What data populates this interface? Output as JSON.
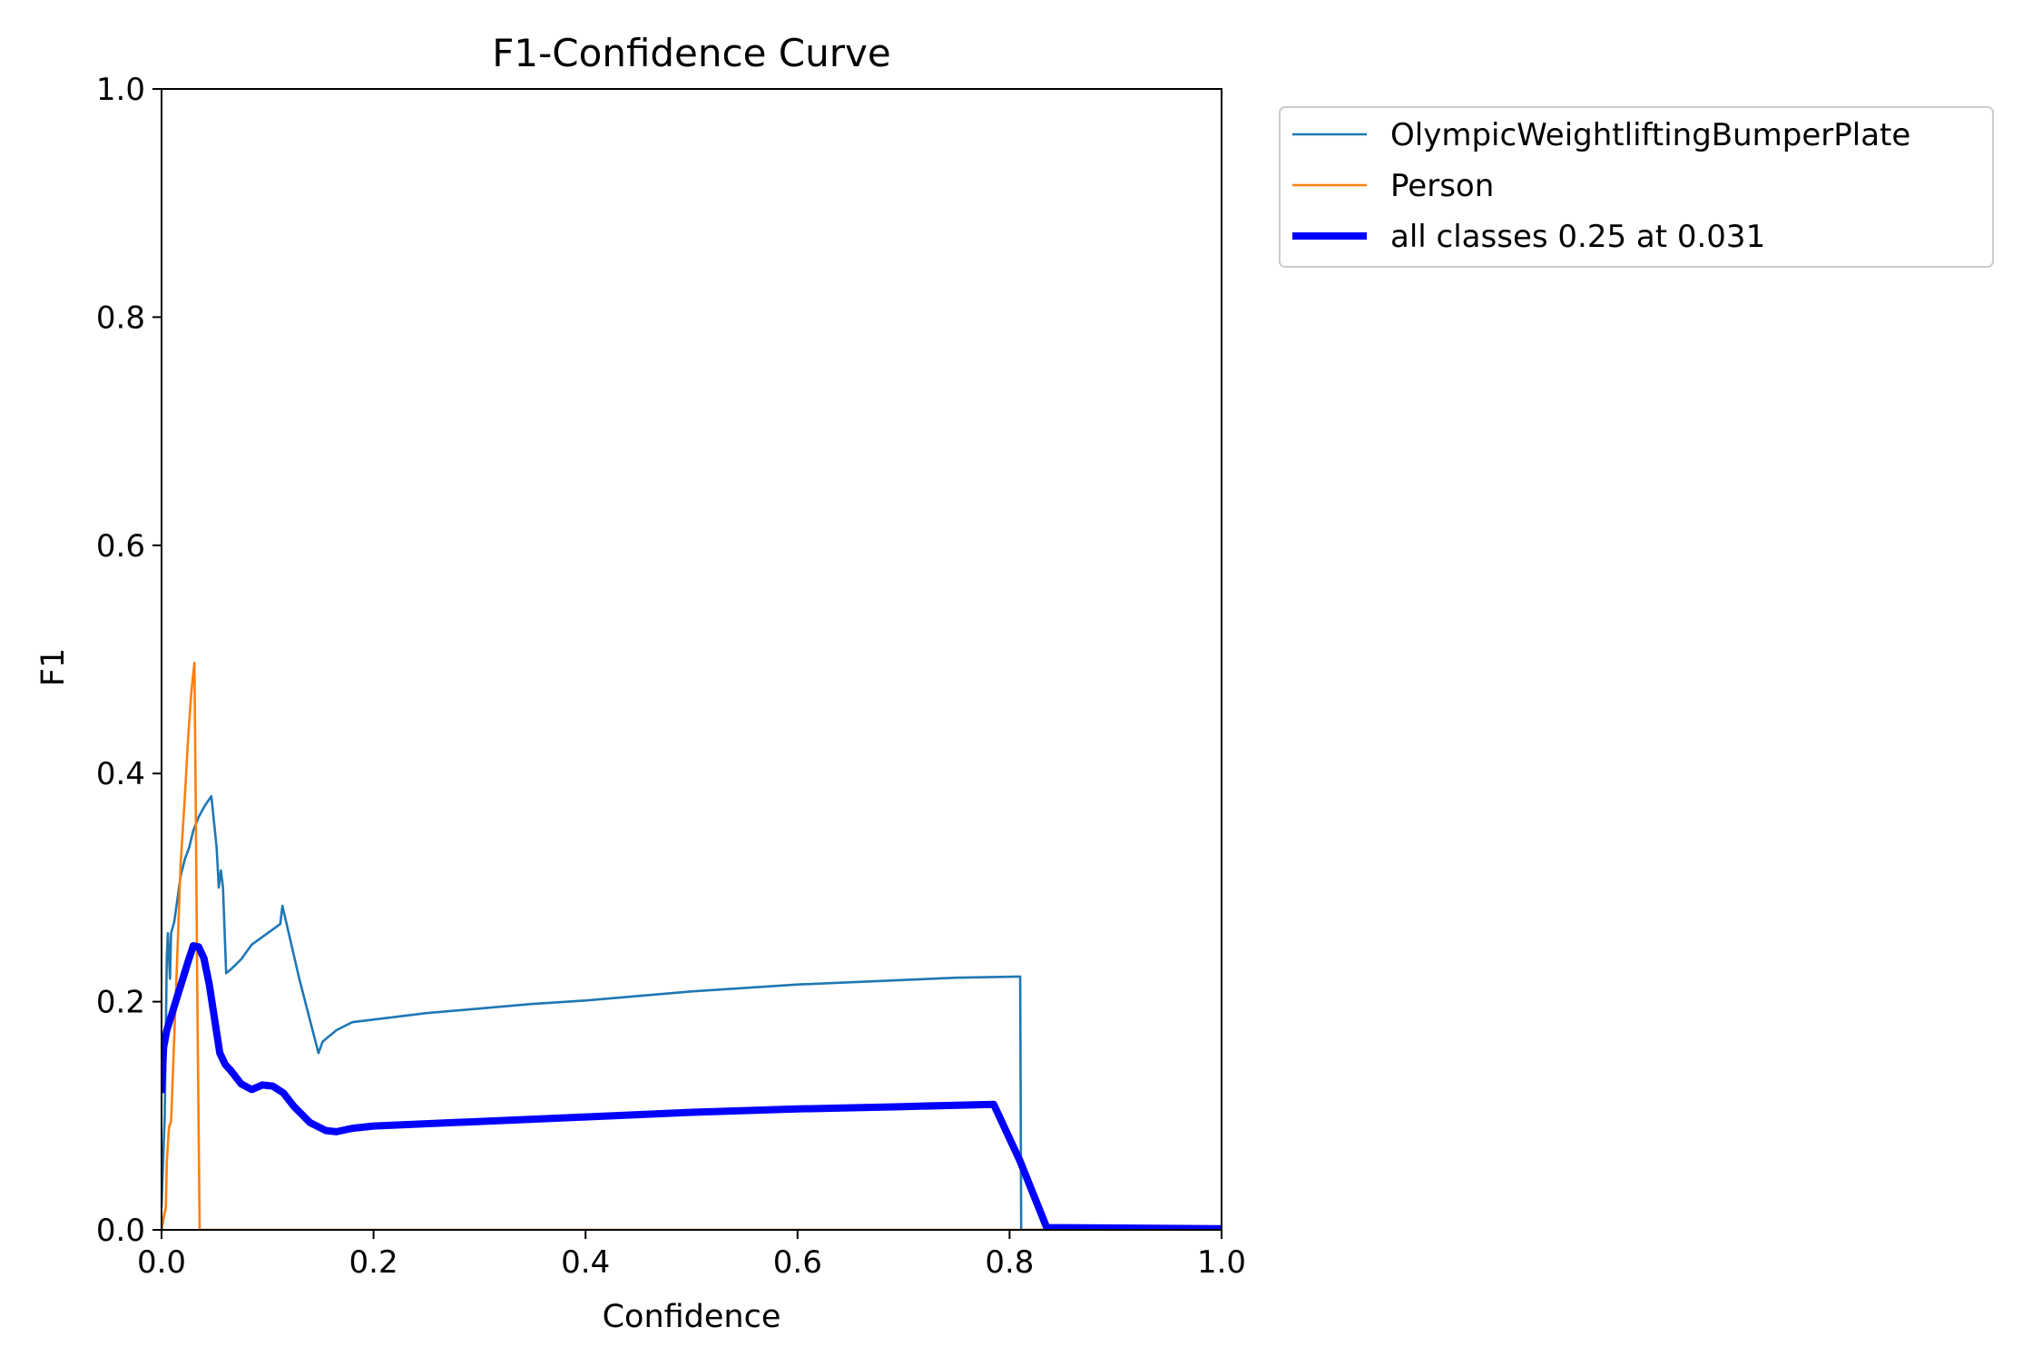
{
  "chart_data": {
    "type": "line",
    "title": "F1-Confidence Curve",
    "xlabel": "Confidence",
    "ylabel": "F1",
    "xlim": [
      0.0,
      1.0
    ],
    "ylim": [
      0.0,
      1.0
    ],
    "xticks": [
      "0.0",
      "0.2",
      "0.4",
      "0.6",
      "0.8",
      "1.0"
    ],
    "yticks": [
      "0.0",
      "0.2",
      "0.4",
      "0.6",
      "0.8",
      "1.0"
    ],
    "grid": false,
    "legend_position": "outside-top-right",
    "series": [
      {
        "name": "OlympicWeightliftingBumperPlate",
        "color": "#1f77b4",
        "points": [
          [
            0.0,
            0.02
          ],
          [
            0.003,
            0.1
          ],
          [
            0.005,
            0.24
          ],
          [
            0.006,
            0.26
          ],
          [
            0.008,
            0.22
          ],
          [
            0.009,
            0.26
          ],
          [
            0.012,
            0.27
          ],
          [
            0.015,
            0.29
          ],
          [
            0.018,
            0.31
          ],
          [
            0.022,
            0.325
          ],
          [
            0.026,
            0.335
          ],
          [
            0.03,
            0.35
          ],
          [
            0.035,
            0.362
          ],
          [
            0.041,
            0.372
          ],
          [
            0.047,
            0.38
          ],
          [
            0.052,
            0.335
          ],
          [
            0.054,
            0.3
          ],
          [
            0.056,
            0.315
          ],
          [
            0.058,
            0.3
          ],
          [
            0.061,
            0.225
          ],
          [
            0.065,
            0.228
          ],
          [
            0.075,
            0.237
          ],
          [
            0.085,
            0.25
          ],
          [
            0.1,
            0.26
          ],
          [
            0.112,
            0.268
          ],
          [
            0.114,
            0.284
          ],
          [
            0.13,
            0.22
          ],
          [
            0.148,
            0.155
          ],
          [
            0.152,
            0.165
          ],
          [
            0.165,
            0.175
          ],
          [
            0.18,
            0.182
          ],
          [
            0.25,
            0.19
          ],
          [
            0.35,
            0.198
          ],
          [
            0.4,
            0.201
          ],
          [
            0.5,
            0.209
          ],
          [
            0.6,
            0.215
          ],
          [
            0.7,
            0.219
          ],
          [
            0.75,
            0.221
          ],
          [
            0.81,
            0.222
          ],
          [
            0.811,
            0.0
          ],
          [
            1.0,
            0.0
          ]
        ]
      },
      {
        "name": "Person",
        "color": "#ff7f0e",
        "points": [
          [
            0.0,
            0.0
          ],
          [
            0.002,
            0.01
          ],
          [
            0.004,
            0.02
          ],
          [
            0.005,
            0.06
          ],
          [
            0.007,
            0.09
          ],
          [
            0.009,
            0.095
          ],
          [
            0.01,
            0.12
          ],
          [
            0.014,
            0.22
          ],
          [
            0.018,
            0.32
          ],
          [
            0.022,
            0.38
          ],
          [
            0.025,
            0.43
          ],
          [
            0.028,
            0.47
          ],
          [
            0.031,
            0.497
          ],
          [
            0.032,
            0.4
          ],
          [
            0.034,
            0.18
          ],
          [
            0.036,
            0.0
          ],
          [
            1.0,
            0.0
          ]
        ]
      },
      {
        "name": "all classes 0.25 at 0.031",
        "color": "#0000ff",
        "points": [
          [
            0.0,
            0.12
          ],
          [
            0.002,
            0.16
          ],
          [
            0.005,
            0.175
          ],
          [
            0.01,
            0.19
          ],
          [
            0.015,
            0.205
          ],
          [
            0.02,
            0.22
          ],
          [
            0.025,
            0.235
          ],
          [
            0.03,
            0.249
          ],
          [
            0.035,
            0.248
          ],
          [
            0.04,
            0.238
          ],
          [
            0.045,
            0.215
          ],
          [
            0.05,
            0.185
          ],
          [
            0.055,
            0.155
          ],
          [
            0.06,
            0.145
          ],
          [
            0.065,
            0.14
          ],
          [
            0.075,
            0.128
          ],
          [
            0.085,
            0.123
          ],
          [
            0.095,
            0.127
          ],
          [
            0.105,
            0.126
          ],
          [
            0.115,
            0.12
          ],
          [
            0.125,
            0.108
          ],
          [
            0.14,
            0.094
          ],
          [
            0.155,
            0.087
          ],
          [
            0.165,
            0.086
          ],
          [
            0.18,
            0.089
          ],
          [
            0.2,
            0.091
          ],
          [
            0.3,
            0.095
          ],
          [
            0.4,
            0.099
          ],
          [
            0.5,
            0.103
          ],
          [
            0.6,
            0.106
          ],
          [
            0.7,
            0.108
          ],
          [
            0.785,
            0.11
          ],
          [
            0.81,
            0.06
          ],
          [
            0.835,
            0.002
          ],
          [
            1.0,
            0.001
          ]
        ]
      }
    ]
  }
}
